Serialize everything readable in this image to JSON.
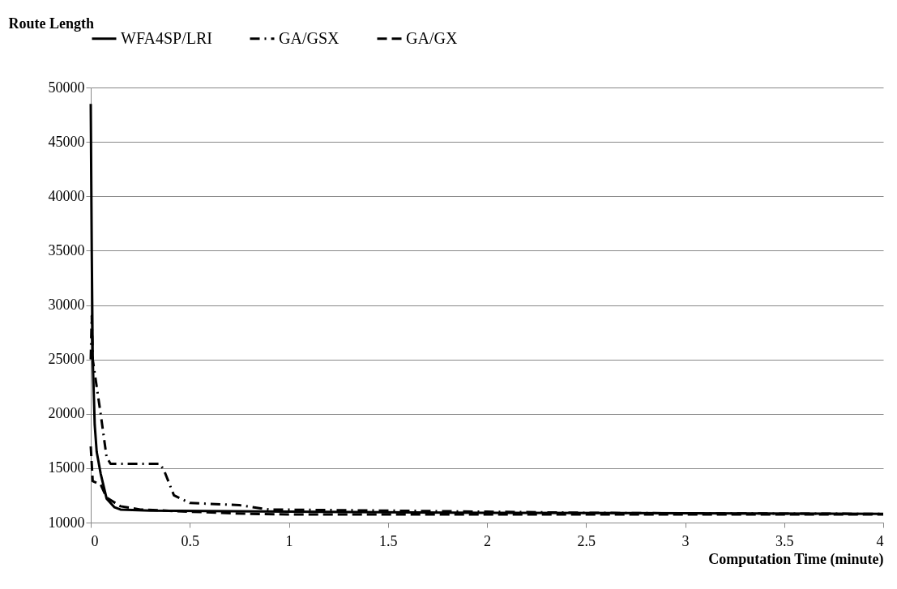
{
  "chart_data": {
    "type": "line",
    "xlabel": "Computation Time (minute)",
    "ylabel": "Route Length",
    "xlim": [
      0,
      4
    ],
    "xticks": [
      0,
      0.5,
      1,
      1.5,
      2,
      2.5,
      3,
      3.5,
      4
    ],
    "ylim": [
      10000,
      50000
    ],
    "yticks": [
      10000,
      15000,
      20000,
      25000,
      30000,
      35000,
      40000,
      45000,
      50000
    ],
    "grid": "y",
    "legend": "top",
    "marker": "none",
    "series": [
      {
        "name": "WFA4SP/LRI",
        "color": "#000000",
        "line_style": "solid",
        "x": [
          0,
          0.005,
          0.01,
          0.02,
          0.03,
          0.05,
          0.08,
          0.12,
          0.15,
          0.3,
          1,
          2,
          3,
          4
        ],
        "values": [
          48500,
          35000,
          25000,
          19000,
          16500,
          14500,
          12200,
          11400,
          11200,
          11100,
          11000,
          10900,
          10850,
          10800
        ]
      },
      {
        "name": "GA/GSX",
        "color": "#000000",
        "line_style": "dashdot",
        "x": [
          0,
          0.005,
          0.01,
          0.03,
          0.05,
          0.08,
          0.1,
          0.2,
          0.35,
          0.37,
          0.42,
          0.5,
          0.75,
          0.9,
          1.5,
          2,
          2.5,
          3,
          4
        ],
        "values": [
          25000,
          29000,
          25000,
          22500,
          20000,
          16000,
          15400,
          15400,
          15400,
          14800,
          12500,
          11800,
          11600,
          11200,
          11100,
          11000,
          10900,
          10850,
          10800
        ]
      },
      {
        "name": "GA/GX",
        "color": "#000000",
        "line_style": "dashed",
        "x": [
          0,
          0.01,
          0.05,
          0.08,
          0.15,
          0.25,
          0.5,
          0.8,
          1,
          2,
          3,
          4
        ],
        "values": [
          17000,
          13800,
          13500,
          12300,
          11500,
          11200,
          11000,
          10800,
          10750,
          10750,
          10750,
          10750
        ]
      }
    ]
  }
}
